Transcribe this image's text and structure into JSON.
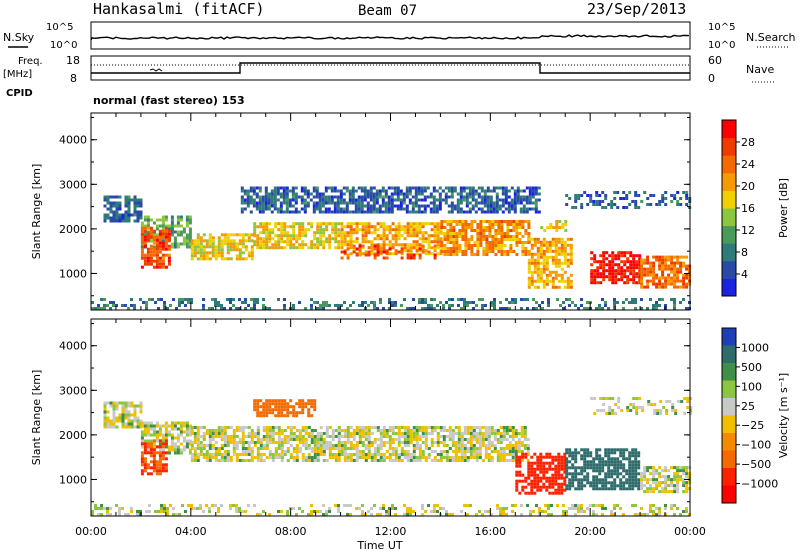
{
  "header": {
    "station": "Hankasalmi (fitACF)",
    "beam": "Beam 07",
    "date": "23/Sep/2013"
  },
  "noise_panel": {
    "left_label": "N.Sky",
    "right_label": "N.Search",
    "tick_high": "10^5",
    "tick_low": "10^0"
  },
  "freq_panel": {
    "left_label_1": "Freq.",
    "left_label_2": "[MHz]",
    "left_tick_high": "18",
    "left_tick_low": "8",
    "right_label": "Nave",
    "right_tick_high": "60",
    "right_tick_low": "0",
    "cpid_label": "CPID",
    "cpid_text": "normal (fast stereo) 153"
  },
  "axes": {
    "ylabel": "Slant Range [km]",
    "xlabel": "Time UT",
    "x_ticks": [
      "00:00",
      "04:00",
      "08:00",
      "12:00",
      "16:00",
      "20:00",
      "00:00"
    ],
    "y_ticks": [
      "1000",
      "2000",
      "3000",
      "4000"
    ]
  },
  "power_colorbar": {
    "label": "Power [dB]",
    "ticks": [
      "4",
      "8",
      "12",
      "16",
      "20",
      "24",
      "28"
    ],
    "colors": [
      "#1a24e0",
      "#2a4aa8",
      "#2f7a7a",
      "#4c9a5a",
      "#8cc63f",
      "#f0d000",
      "#f59a00",
      "#f46a00",
      "#ef3a00",
      "#ff0000"
    ]
  },
  "velocity_colorbar": {
    "label": "Velocity [m s⁻¹]",
    "ticks": [
      "1000",
      "500",
      "100",
      "25",
      "−25",
      "−100",
      "−500",
      "−1000"
    ],
    "colors": [
      "#1f3fb5",
      "#2e6b6b",
      "#3f8f4a",
      "#8cc63f",
      "#c8c8c8",
      "#f0c000",
      "#f58a00",
      "#f46a00",
      "#ff2000",
      "#ff0000"
    ]
  },
  "chart_data": [
    {
      "type": "heatmap",
      "title": "Power [dB]",
      "xlabel": "Time UT",
      "ylabel": "Slant Range [km]",
      "xlim": [
        0,
        24
      ],
      "ylim": [
        180,
        4600
      ],
      "bands": [
        {
          "t0": 0.5,
          "t1": 2.0,
          "r0": 2150,
          "r1": 2750,
          "value": 6
        },
        {
          "t0": 2.0,
          "t1": 4.0,
          "r0": 1600,
          "r1": 2300,
          "value": 12
        },
        {
          "t0": 2.0,
          "t1": 3.2,
          "r0": 1150,
          "r1": 2050,
          "value": 26
        },
        {
          "t0": 4.0,
          "t1": 6.5,
          "r0": 1350,
          "r1": 1900,
          "value": 18
        },
        {
          "t0": 6.5,
          "t1": 10.0,
          "r0": 1550,
          "r1": 2150,
          "value": 18
        },
        {
          "t0": 10.0,
          "t1": 14.0,
          "r0": 1450,
          "r1": 2150,
          "value": 20
        },
        {
          "t0": 10.0,
          "t1": 14.0,
          "r0": 1350,
          "r1": 1650,
          "value": 26
        },
        {
          "t0": 14.0,
          "t1": 17.5,
          "r0": 1400,
          "r1": 2200,
          "value": 22
        },
        {
          "t0": 17.5,
          "t1": 19.2,
          "r0": 700,
          "r1": 1800,
          "value": 20
        },
        {
          "t0": 18.0,
          "t1": 19.0,
          "r0": 1900,
          "r1": 2200,
          "value": 18
        },
        {
          "t0": 20.0,
          "t1": 22.0,
          "r0": 800,
          "r1": 1500,
          "value": 30
        },
        {
          "t0": 22.0,
          "t1": 24.0,
          "r0": 700,
          "r1": 1400,
          "value": 24
        },
        {
          "t0": 6.0,
          "t1": 18.0,
          "r0": 2400,
          "r1": 2950,
          "value": 6
        },
        {
          "t0": 19.0,
          "t1": 24.0,
          "r0": 2500,
          "r1": 2850,
          "value": 6
        },
        {
          "t0": 0.0,
          "t1": 24.0,
          "r0": 200,
          "r1": 450,
          "value": 8
        }
      ]
    },
    {
      "type": "heatmap",
      "title": "Velocity [m s⁻¹]",
      "xlabel": "Time UT",
      "ylabel": "Slant Range [km]",
      "xlim": [
        0,
        24
      ],
      "ylim": [
        180,
        4600
      ],
      "bands": [
        {
          "t0": 0.0,
          "t1": 24.0,
          "r0": 200,
          "r1": 450,
          "value": 0
        },
        {
          "t0": 0.5,
          "t1": 2.0,
          "r0": 2150,
          "r1": 2750,
          "value": 0
        },
        {
          "t0": 2.0,
          "t1": 4.0,
          "r0": 1600,
          "r1": 2300,
          "value": 0
        },
        {
          "t0": 2.0,
          "t1": 3.0,
          "r0": 1150,
          "r1": 1900,
          "value": -300
        },
        {
          "t0": 4.0,
          "t1": 17.5,
          "r0": 1400,
          "r1": 2200,
          "value": 0
        },
        {
          "t0": 6.5,
          "t1": 9.0,
          "r0": 2400,
          "r1": 2800,
          "value": -200
        },
        {
          "t0": 17.0,
          "t1": 19.0,
          "r0": 700,
          "r1": 1600,
          "value": -400
        },
        {
          "t0": 19.0,
          "t1": 22.0,
          "r0": 800,
          "r1": 1700,
          "value": 300
        },
        {
          "t0": 22.0,
          "t1": 24.0,
          "r0": 700,
          "r1": 1300,
          "value": 0
        },
        {
          "t0": 20.0,
          "t1": 24.0,
          "r0": 2500,
          "r1": 2850,
          "value": 0
        }
      ]
    }
  ]
}
